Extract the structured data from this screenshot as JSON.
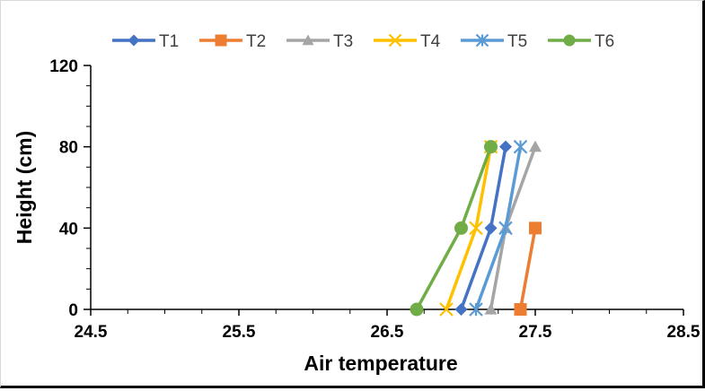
{
  "chart_data": {
    "type": "line",
    "title": "",
    "xlabel": "Air temperature",
    "ylabel": "Height (cm)",
    "xlim": [
      24.5,
      28.5
    ],
    "ylim": [
      0,
      120
    ],
    "x_ticks": [
      "24.5",
      "25.5",
      "26.5",
      "27.5",
      "28.5"
    ],
    "y_ticks": [
      "0",
      "40",
      "80",
      "120"
    ],
    "grid": false,
    "legend_position": "top",
    "series": [
      {
        "name": "T1",
        "color": "#4472C4",
        "marker": "diamond",
        "points": [
          {
            "x": 27.0,
            "y": 0
          },
          {
            "x": 27.2,
            "y": 40
          },
          {
            "x": 27.3,
            "y": 80
          }
        ]
      },
      {
        "name": "T2",
        "color": "#ED7D31",
        "marker": "square",
        "points": [
          {
            "x": 27.4,
            "y": 0
          },
          {
            "x": 27.5,
            "y": 40
          }
        ]
      },
      {
        "name": "T3",
        "color": "#A5A5A5",
        "marker": "triangle",
        "points": [
          {
            "x": 27.2,
            "y": 0
          },
          {
            "x": 27.3,
            "y": 40
          },
          {
            "x": 27.5,
            "y": 80
          }
        ]
      },
      {
        "name": "T4",
        "color": "#FFC000",
        "marker": "x",
        "points": [
          {
            "x": 26.9,
            "y": 0
          },
          {
            "x": 27.1,
            "y": 40
          },
          {
            "x": 27.2,
            "y": 80
          }
        ]
      },
      {
        "name": "T5",
        "color": "#5B9BD5",
        "marker": "star",
        "points": [
          {
            "x": 27.1,
            "y": 0
          },
          {
            "x": 27.3,
            "y": 40
          },
          {
            "x": 27.4,
            "y": 80
          }
        ]
      },
      {
        "name": "T6",
        "color": "#70AD47",
        "marker": "circle",
        "points": [
          {
            "x": 26.7,
            "y": 0
          },
          {
            "x": 27.0,
            "y": 40
          },
          {
            "x": 27.2,
            "y": 80
          }
        ]
      }
    ]
  }
}
